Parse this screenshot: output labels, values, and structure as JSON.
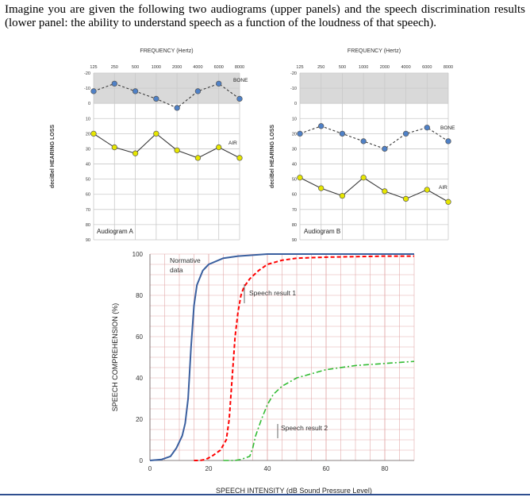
{
  "intro_text": "Imagine you are given the following two audiograms (upper panels) and the speech discrimination results (lower panel: the ability to understand speech as a function of the loudness of that speech).",
  "chart_data": [
    {
      "type": "line",
      "id": "audiogram-a",
      "title": "Audiogram A",
      "top_label": "FREQUENCY (Hertz)",
      "ylabel": "deciBel HEARING LOSS",
      "x_ticks": [
        "125",
        "250",
        "500",
        "1000",
        "2000",
        "4000",
        "6000",
        "8000"
      ],
      "y_ticks": [
        "-20",
        "-10",
        "0",
        "10",
        "20",
        "30",
        "40",
        "50",
        "60",
        "70",
        "80",
        "90"
      ],
      "ylim": [
        -20,
        90
      ],
      "shaded_range": [
        -20,
        0
      ],
      "series": [
        {
          "name": "BONE",
          "values": [
            -8,
            -13,
            -8,
            -3,
            3,
            -8,
            -13,
            -3
          ],
          "color": "#4f81c7"
        },
        {
          "name": "AIR",
          "values": [
            20,
            29,
            33,
            20,
            31,
            36,
            29,
            36
          ],
          "color": "#e6e600"
        }
      ]
    },
    {
      "type": "line",
      "id": "audiogram-b",
      "title": "Audiogram B",
      "top_label": "FREQUENCY (Hertz)",
      "ylabel": "deciBel HEARING LOSS",
      "x_ticks": [
        "125",
        "250",
        "500",
        "1000",
        "2000",
        "4000",
        "6000",
        "8000"
      ],
      "y_ticks": [
        "-20",
        "-10",
        "0",
        "10",
        "20",
        "30",
        "40",
        "50",
        "60",
        "70",
        "80",
        "90"
      ],
      "ylim": [
        -20,
        90
      ],
      "shaded_range": [
        -20,
        0
      ],
      "series": [
        {
          "name": "BONE",
          "values": [
            20,
            15,
            20,
            25,
            30,
            20,
            16,
            25
          ],
          "color": "#4f81c7"
        },
        {
          "name": "AIR",
          "values": [
            49,
            56,
            61,
            49,
            58,
            63,
            57,
            65
          ],
          "color": "#e6e600"
        }
      ]
    },
    {
      "type": "line",
      "id": "speech-chart",
      "xlabel": "SPEECH INTENSITY (dB Sound Pressure Level)",
      "ylabel": "SPEECH COMPREHENSION (%)",
      "xlim": [
        0,
        90
      ],
      "ylim": [
        0,
        100
      ],
      "x_ticks": [
        "0",
        "20",
        "40",
        "60",
        "80"
      ],
      "y_ticks": [
        "0",
        "20",
        "40",
        "60",
        "80",
        "100"
      ],
      "annotations": {
        "normative": "Normative data",
        "speech1": "Speech result 1",
        "speech2": "Speech result 2"
      },
      "series": [
        {
          "name": "Normative data",
          "color": "#3a5f9f",
          "x": [
            0,
            4,
            7,
            9,
            11,
            12,
            13,
            14,
            15,
            16,
            18,
            20,
            25,
            30,
            40,
            60,
            80,
            90
          ],
          "y": [
            0,
            0.5,
            2,
            6,
            12,
            18,
            30,
            55,
            75,
            85,
            92,
            95,
            98,
            99,
            100,
            100,
            100,
            100
          ]
        },
        {
          "name": "Speech result 1",
          "color": "#ff0000",
          "x": [
            15,
            17,
            19,
            21,
            24,
            26,
            27,
            28,
            29,
            30,
            31,
            32,
            34,
            37,
            40,
            45,
            50,
            60,
            80,
            90
          ],
          "y": [
            0,
            0,
            0.5,
            2,
            5,
            10,
            20,
            40,
            60,
            72,
            80,
            84,
            88,
            92,
            95,
            97,
            98,
            98.5,
            99,
            99
          ]
        },
        {
          "name": "Speech result 2",
          "color": "#33bb33",
          "x": [
            25,
            29,
            31,
            32,
            34,
            35,
            36,
            38,
            40,
            42,
            45,
            50,
            55,
            60,
            70,
            80,
            90
          ],
          "y": [
            0,
            0,
            0.5,
            1,
            2,
            6,
            12,
            20,
            27,
            32,
            36,
            40,
            42,
            44,
            46,
            47,
            48
          ]
        }
      ]
    }
  ]
}
